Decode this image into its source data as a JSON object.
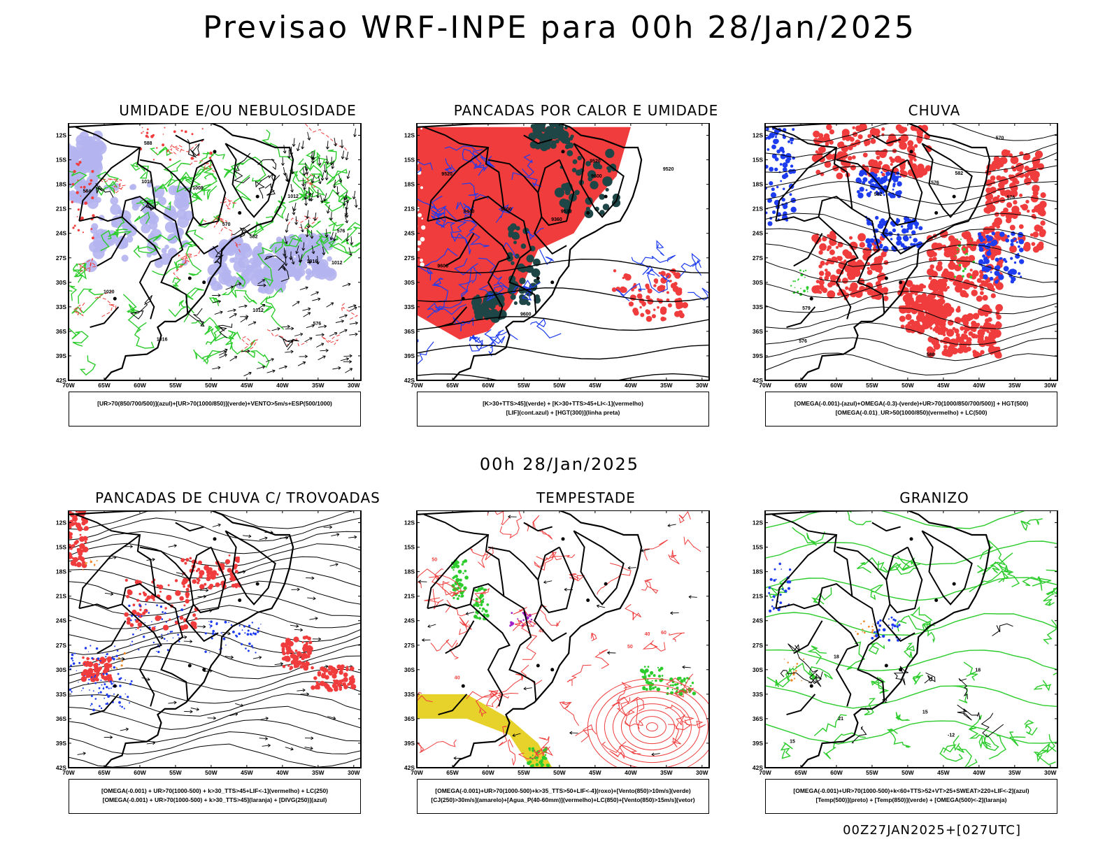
{
  "main_title": "Previsao WRF-INPE  para 00h 28/Jan/2025",
  "mid_title": "00h 28/Jan/2025",
  "footer": "00Z27JAN2025+[027UTC]",
  "axis": {
    "lat_labels": [
      "12S",
      "15S",
      "18S",
      "21S",
      "24S",
      "27S",
      "30S",
      "33S",
      "36S",
      "39S",
      "42S"
    ],
    "lon_labels": [
      "70W",
      "65W",
      "60W",
      "55W",
      "50W",
      "45W",
      "40W",
      "35W",
      "30W"
    ]
  },
  "colors": {
    "red": "#f03c3c",
    "green": "#2ccc2c",
    "blue": "#1e3cf0",
    "lavender": "#b4b4f0",
    "darkteal": "#1e4646",
    "yellow": "#e6d22a",
    "purple": "#a020c8",
    "orange": "#f08a28"
  },
  "panels": [
    {
      "title": "UMIDADE E/OU NEBULOSIDADE",
      "legend_lines": [
        "[UR>70(850/700/500)](azul)+[UR>70(1000/850)](verde)+VENTO>5m/s+ESP(500/1000)"
      ],
      "contour_labels": [
        "1012",
        "1012",
        "1012",
        "1008",
        "1016",
        "1016",
        "570",
        "576",
        "576",
        "582",
        "584",
        "588",
        "1020",
        "1016"
      ]
    },
    {
      "title": "PANCADAS POR CALOR E UMIDADE",
      "legend_lines": [
        "[K>30+TTS>45](verde)  +  [K>30+TTS>45+LI<-1](vermelho)",
        "[LIF](cont.azul)  +  [HGT(300)](linha preta)"
      ],
      "contour_labels": [
        "9600",
        "9600",
        "9600",
        "9600",
        "9520",
        "9520",
        "9440",
        "9360",
        "9520",
        "9520"
      ]
    },
    {
      "title": "CHUVA",
      "legend_lines": [
        "[OMEGA(-0.001)-(azul)+OMEGA(-0.3)-(verde)+UR>70(1000/850/700/500)]  +  HGT(500)",
        "[OMEGA(-0.01)_UR>50(1000/850)(vermelho)  +  LC(500)"
      ],
      "contour_labels": [
        "588",
        "582",
        "576",
        "570",
        "576",
        "576",
        "582",
        "579"
      ]
    },
    {
      "title": "PANCADAS DE CHUVA C/ TROVOADAS",
      "legend_lines": [
        "[OMEGA(-0.001)  +  UR>70(1000-500)  +  k>30_TTS>45+LIF<-1](vermelho)  +  LC(250)",
        "[OMEGA(-0.001)  +  UR>70(1000-500)  +  k>30_TTS>45](laranja)  +  [DIVG(250)](azul)"
      ],
      "contour_labels": []
    },
    {
      "title": "TEMPESTADE",
      "legend_lines": [
        "[OMEGA(-0.001)+UR>70(1000-500)+k>35_TTS>50+LIF<-4](roxo)+[Vento(850)>10m/s](verde)",
        "[CJ(250)>30m/s](amarelo)+[Agua_P(40-60mm)](vermelho)+LC(850)+[Vento(850)>15m/s](vetor)"
      ],
      "contour_labels": [
        "40",
        "40",
        "50",
        "50",
        "60",
        "40"
      ]
    },
    {
      "title": "GRANIZO",
      "legend_lines": [
        "[OMEGA(-0.001)+UR>70(1000-500)+k<60+TTS>52+VT>25+SWEAT>220+LIF<-2](azul)",
        "[Temp(500)](preto)  +  [Temp(850)](verde)  +  [OMEGA(500)<-2](laranja)"
      ],
      "contour_labels": [
        "-12",
        "15",
        "18",
        "21",
        "18",
        "15",
        "12"
      ]
    }
  ]
}
